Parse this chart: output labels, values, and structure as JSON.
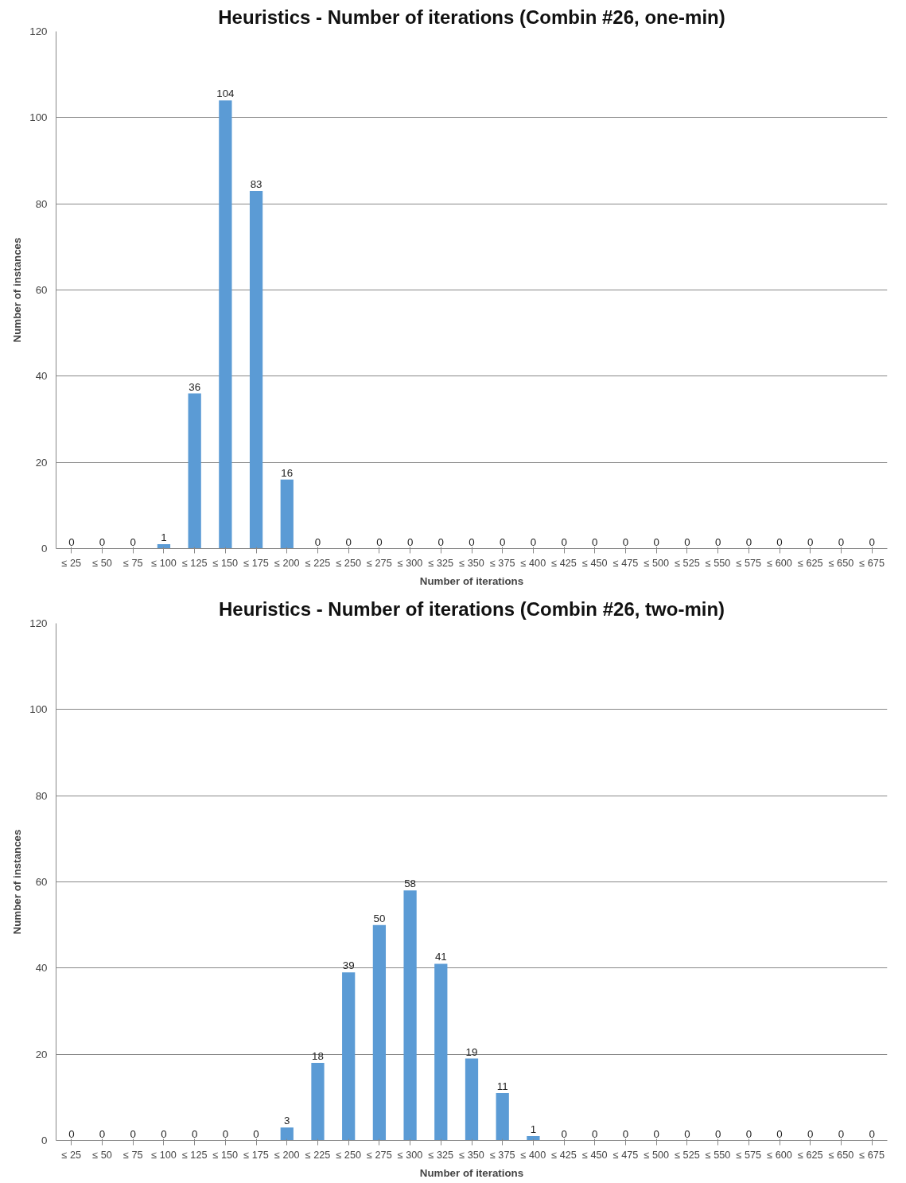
{
  "chart_data": [
    {
      "type": "bar",
      "title": "Heuristics - Number of iterations (Combin #26, one-min)",
      "xlabel": "Number of iterations",
      "ylabel": "Number of instances",
      "categories": [
        "≤ 25",
        "≤ 50",
        "≤ 75",
        "≤ 100",
        "≤ 125",
        "≤ 150",
        "≤ 175",
        "≤ 200",
        "≤ 225",
        "≤ 250",
        "≤ 275",
        "≤ 300",
        "≤ 325",
        "≤ 350",
        "≤ 375",
        "≤ 400",
        "≤ 425",
        "≤ 450",
        "≤ 475",
        "≤ 500",
        "≤ 525",
        "≤ 550",
        "≤ 575",
        "≤ 600",
        "≤ 625",
        "≤ 650",
        "≤ 675"
      ],
      "values": [
        0,
        0,
        0,
        1,
        36,
        104,
        83,
        16,
        0,
        0,
        0,
        0,
        0,
        0,
        0,
        0,
        0,
        0,
        0,
        0,
        0,
        0,
        0,
        0,
        0,
        0,
        0
      ],
      "color": "#5b9bd5",
      "ylim": [
        0,
        120
      ],
      "yticks": [
        0,
        20,
        40,
        60,
        80,
        100,
        120
      ],
      "grid": "y",
      "data_labels": true
    },
    {
      "type": "bar",
      "title": "Heuristics - Number of iterations (Combin #26, two-min)",
      "xlabel": "Number of iterations",
      "ylabel": "Number of instances",
      "categories": [
        "≤ 25",
        "≤ 50",
        "≤ 75",
        "≤ 100",
        "≤ 125",
        "≤ 150",
        "≤ 175",
        "≤ 200",
        "≤ 225",
        "≤ 250",
        "≤ 275",
        "≤ 300",
        "≤ 325",
        "≤ 350",
        "≤ 375",
        "≤ 400",
        "≤ 425",
        "≤ 450",
        "≤ 475",
        "≤ 500",
        "≤ 525",
        "≤ 550",
        "≤ 575",
        "≤ 600",
        "≤ 625",
        "≤ 650",
        "≤ 675"
      ],
      "values": [
        0,
        0,
        0,
        0,
        0,
        0,
        0,
        3,
        18,
        39,
        50,
        58,
        41,
        19,
        11,
        1,
        0,
        0,
        0,
        0,
        0,
        0,
        0,
        0,
        0,
        0,
        0
      ],
      "color": "#5b9bd5",
      "ylim": [
        0,
        120
      ],
      "yticks": [
        0,
        20,
        40,
        60,
        80,
        100,
        120
      ],
      "grid": "y",
      "data_labels": true
    }
  ]
}
